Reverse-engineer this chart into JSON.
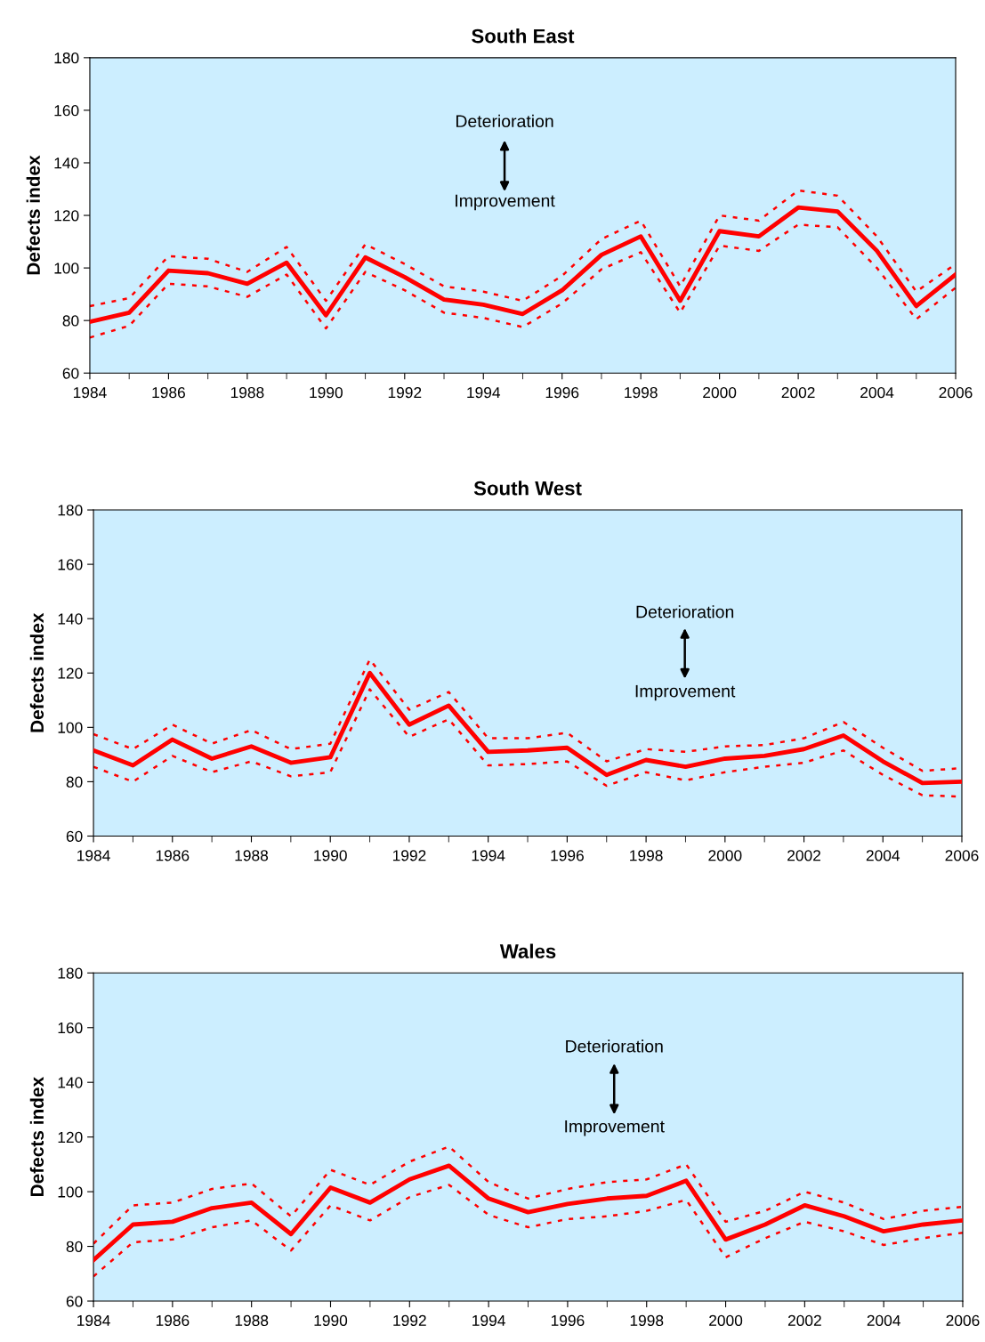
{
  "chart_data": [
    {
      "type": "line",
      "title": "South East",
      "ylabel": "Defects index",
      "annotations": [
        "Deterioration",
        "Improvement"
      ],
      "xlim": [
        1984,
        2006
      ],
      "ylim": [
        60,
        180
      ],
      "xticks": [
        1984,
        1986,
        1988,
        1990,
        1992,
        1994,
        1996,
        1998,
        2000,
        2002,
        2004,
        2006
      ],
      "yticks": [
        60,
        80,
        100,
        120,
        140,
        160,
        180
      ],
      "grid": false,
      "legend": false,
      "marker": "none",
      "x": [
        1984,
        1985,
        1986,
        1987,
        1988,
        1989,
        1990,
        1991,
        1992,
        1993,
        1994,
        1995,
        1996,
        1997,
        1998,
        1999,
        2000,
        2001,
        2002,
        2003,
        2004,
        2005,
        2006
      ],
      "series": [
        {
          "color": "#ff0000",
          "line_style": "solid",
          "values": [
            79.5,
            83,
            99,
            98,
            94,
            102,
            82,
            104,
            96.5,
            88,
            86,
            82.5,
            91.5,
            105,
            112,
            87.5,
            114,
            112,
            123,
            121.5,
            106.5,
            85.5,
            97.5
          ]
        },
        {
          "color": "#ff0000",
          "line_style": "dotted",
          "values": [
            85.5,
            88.5,
            104.5,
            103.5,
            98.5,
            108,
            87.5,
            109,
            101.5,
            93,
            91,
            87.5,
            97,
            111,
            118,
            93,
            120,
            118,
            129.5,
            127.5,
            112,
            91,
            101.5
          ]
        },
        {
          "color": "#ff0000",
          "line_style": "dotted",
          "values": [
            73.5,
            78,
            94,
            93,
            89,
            97.5,
            77,
            98.5,
            91.5,
            83,
            81,
            77.5,
            86.5,
            99.5,
            106,
            83,
            108.5,
            106.5,
            116.5,
            115.5,
            100,
            80.5,
            92.5
          ]
        }
      ]
    },
    {
      "type": "line",
      "title": "South West",
      "ylabel": "Defects index",
      "annotations": [
        "Deterioration",
        "Improvement"
      ],
      "xlim": [
        1984,
        2006
      ],
      "ylim": [
        60,
        180
      ],
      "xticks": [
        1984,
        1986,
        1988,
        1990,
        1992,
        1994,
        1996,
        1998,
        2000,
        2002,
        2004,
        2006
      ],
      "yticks": [
        60,
        80,
        100,
        120,
        140,
        160,
        180
      ],
      "grid": false,
      "legend": false,
      "marker": "none",
      "x": [
        1984,
        1985,
        1986,
        1987,
        1988,
        1989,
        1990,
        1991,
        1992,
        1993,
        1994,
        1995,
        1996,
        1997,
        1998,
        1999,
        2000,
        2001,
        2002,
        2003,
        2004,
        2005,
        2006
      ],
      "series": [
        {
          "color": "#ff0000",
          "line_style": "solid",
          "values": [
            91.5,
            86,
            95.5,
            88.5,
            93,
            87,
            89,
            120,
            101,
            108,
            91,
            91.5,
            92.5,
            82.5,
            88,
            85.5,
            88.5,
            89.5,
            92,
            97,
            87.5,
            79.5,
            80
          ]
        },
        {
          "color": "#ff0000",
          "line_style": "dotted",
          "values": [
            97.5,
            92,
            101,
            94,
            99,
            92,
            94,
            125,
            106.5,
            113,
            96,
            96,
            98,
            87.5,
            92,
            91,
            93,
            93.5,
            96,
            102,
            92.5,
            84,
            85
          ]
        },
        {
          "color": "#ff0000",
          "line_style": "dotted",
          "values": [
            85.5,
            80,
            89.5,
            83.5,
            87.5,
            82,
            83.5,
            114,
            96.5,
            103,
            86,
            86.5,
            87.5,
            78.5,
            83.5,
            80.5,
            83.5,
            85.5,
            87,
            91.5,
            82.5,
            75,
            74.5
          ]
        }
      ]
    },
    {
      "type": "line",
      "title": "Wales",
      "ylabel": "Defects index",
      "annotations": [
        "Deterioration",
        "Improvement"
      ],
      "xlim": [
        1984,
        2006
      ],
      "ylim": [
        60,
        180
      ],
      "xticks": [
        1984,
        1986,
        1988,
        1990,
        1992,
        1994,
        1996,
        1998,
        2000,
        2002,
        2004,
        2006
      ],
      "yticks": [
        60,
        80,
        100,
        120,
        140,
        160,
        180
      ],
      "grid": false,
      "legend": false,
      "marker": "none",
      "x": [
        1984,
        1985,
        1986,
        1987,
        1988,
        1989,
        1990,
        1991,
        1992,
        1993,
        1994,
        1995,
        1996,
        1997,
        1998,
        1999,
        2000,
        2001,
        2002,
        2003,
        2004,
        2005,
        2006
      ],
      "series": [
        {
          "color": "#ff0000",
          "line_style": "solid",
          "values": [
            75,
            88,
            89,
            94,
            96,
            84.5,
            101.5,
            96,
            104.5,
            109.5,
            97.5,
            92.5,
            95.5,
            97.5,
            98.5,
            104,
            82.5,
            88,
            95,
            91,
            85.5,
            88,
            89.5
          ]
        },
        {
          "color": "#ff0000",
          "line_style": "dotted",
          "values": [
            81,
            95,
            96,
            101,
            103,
            91,
            108,
            102.5,
            111,
            116.5,
            103.5,
            97.5,
            101,
            103.5,
            104.5,
            110,
            89,
            93,
            100,
            96,
            90,
            93,
            94.5
          ]
        },
        {
          "color": "#ff0000",
          "line_style": "dotted",
          "values": [
            69,
            81.5,
            82.5,
            87,
            89.5,
            78.5,
            95,
            89.5,
            98,
            102.5,
            91.5,
            87,
            90,
            91,
            93,
            97,
            76,
            83,
            89,
            85.5,
            80.5,
            83,
            85
          ]
        }
      ]
    }
  ]
}
